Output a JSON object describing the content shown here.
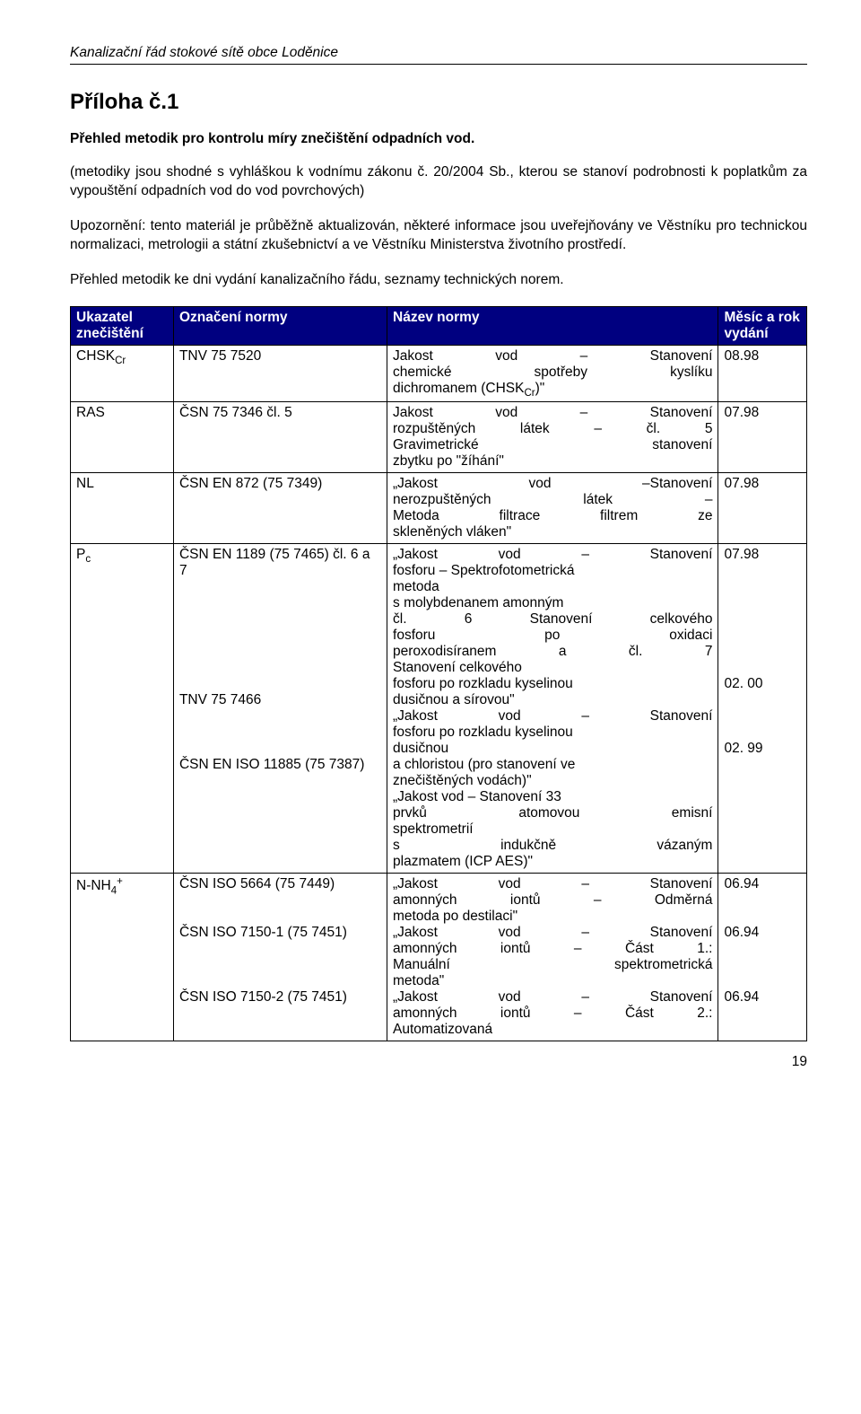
{
  "header": "Kanalizační řád stokové sítě obce Loděnice",
  "title": "Příloha č.1",
  "subtitle": "Přehled metodik pro kontrolu míry znečištění odpadních vod.",
  "para1": "(metodiky jsou shodné s vyhláškou k vodnímu zákonu č. 20/2004 Sb., kterou se stanoví podrobnosti k poplatkům za vypouštění odpadních vod do vod povrchových)",
  "para2": "Upozornění: tento materiál je průběžně aktualizován, některé informace jsou uveřejňovány ve Věstníku pro technickou normalizaci, metrologii a státní zkušebnictví a ve Věstníku Ministerstva životního prostředí.",
  "para3": "Přehled metodik ke dni vydání kanalizačního řádu, seznamy technických norem.",
  "columns": [
    "Ukazatel znečištění",
    "Označení normy",
    "Název normy",
    "Měsíc a rok vydání"
  ],
  "rows": [
    {
      "c0_html": "CHSK<span class=\"sub\">Cr</span>",
      "c1": "TNV 75 7520",
      "c2_html": "<span class=\"jb\">Jakost vod – Stanovení</span><span class=\"jb\">chemické spotřeby kyslíku</span><span class=\"jb last\">dichromanem (CHSK<span class=\"sub\">Cr</span>)\"</span>",
      "c3": "08.98"
    },
    {
      "c0_html": "RAS",
      "c1": "ČSN 75 7346 čl. 5",
      "c2_html": "<span class=\"jb\">Jakost vod – Stanovení</span><span class=\"jb\">rozpuštěných látek – čl. 5</span><span class=\"jb\">Gravimetrické stanovení</span><span class=\"jb last\">zbytku po \"žíhání\"</span>",
      "c3": "07.98"
    },
    {
      "c0_html": "NL",
      "c1": "ČSN EN 872 (75 7349)",
      "c2_html": "<span class=\"jb\">„Jakost vod –Stanovení</span><span class=\"jb\">nerozpuštěných látek –</span><span class=\"jb\">Metoda filtrace filtrem ze</span><span class=\"jb last\">skleněných vláken\"</span>",
      "c3": "07.98"
    },
    {
      "c0_html": "P<span class=\"sub\">c</span>",
      "c1": "ČSN EN 1189 (75 7465) čl. 6 a 7<br><br><br><br><br><br><br><br>TNV 75 7466<br><br><br><br>ČSN EN ISO 11885 (75 7387)",
      "c2_html": "<span class=\"jb\">„Jakost vod – Stanovení</span><span class=\"jb last\">fosforu – Spektrofotometrická</span><span class=\"jb last\">metoda</span><span class=\"jb last\">s molybdenanem amonným</span><span class=\"jb\">čl. 6 Stanovení celkového</span><span class=\"jb\">fosforu po oxidaci</span><span class=\"jb\">peroxodisíranem a čl. 7</span><span class=\"jb last\">Stanovení celkového</span><span class=\"jb last\">fosforu po rozkladu kyselinou</span><span class=\"jb last\">dusičnou a sírovou\"</span><span class=\"jb\">„Jakost vod – Stanovení</span><span class=\"jb last\">fosforu po rozkladu kyselinou</span><span class=\"jb last\">dusičnou</span><span class=\"jb last\">a chloristou (pro stanovení ve</span><span class=\"jb last\">znečištěných vodách)\"</span><span class=\"jb last\">„Jakost vod – Stanovení 33</span><span class=\"jb\">prvků atomovou emisní</span><span class=\"jb last\">spektrometrií</span><span class=\"jb\">s indukčně vázaným</span><span class=\"jb last\">plazmatem (ICP AES)\"</span>",
      "c3": "07.98<br><br><br><br><br><br><br><br>02. 00<br><br><br><br>02. 99"
    },
    {
      "c0_html": "N-NH<span class=\"sub\">4</span><span class=\"sup\">+</span>",
      "c1": "ČSN ISO 5664 (75 7449)<br><br><br>ČSN ISO 7150-1 (75 7451)<br><br><br><br>ČSN ISO 7150-2 (75 7451)",
      "c2_html": "<span class=\"jb\">„Jakost vod – Stanovení</span><span class=\"jb\">amonných iontů – Odměrná</span><span class=\"jb last\">metoda po destilaci\"</span><span class=\"jb\">„Jakost vod – Stanovení</span><span class=\"jb\">amonných iontů – Část 1.:</span><span class=\"jb\">Manuální spektrometrická</span><span class=\"jb last\">metoda\"</span><span class=\"jb\">„Jakost vod – Stanovení</span><span class=\"jb\">amonných iontů – Část 2.:</span><span class=\"jb last\">Automatizovaná</span>",
      "c3": "06.94<br><br><br>06.94<br><br><br><br>06.94"
    }
  ],
  "page_number": "19",
  "colors": {
    "header_bg": "#000080",
    "header_fg": "#ffffff",
    "border": "#000000",
    "body_bg": "#ffffff",
    "text": "#000000"
  },
  "fontsize": {
    "body": 15.5,
    "title": 24,
    "sub": 11.5
  },
  "col_widths_pct": [
    14,
    29,
    45,
    12
  ]
}
